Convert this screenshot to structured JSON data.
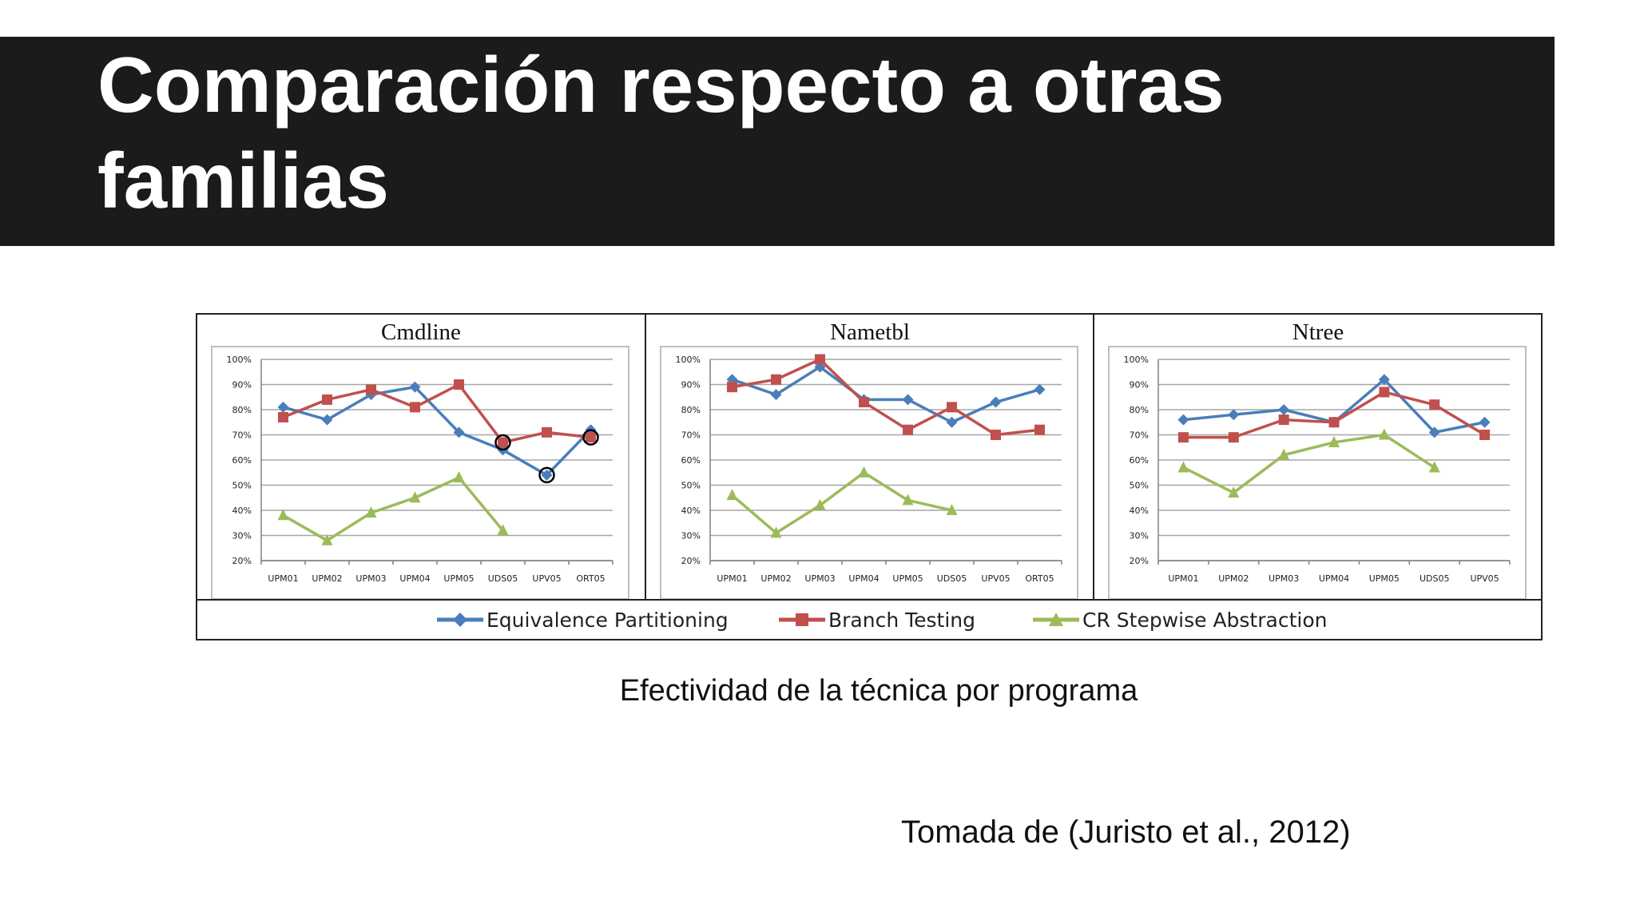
{
  "slide": {
    "title": "Comparación respecto a otras familias",
    "caption": "Efectividad de la técnica por programa",
    "source": "Tomada de (Juristo et al., 2012)"
  },
  "colors": {
    "equivalence": "#4a7ebb",
    "branch": "#c0504d",
    "stepwise": "#9bbb59"
  },
  "legend": [
    {
      "name": "Equivalence Partitioning",
      "color": "#4a7ebb",
      "marker": "diamond"
    },
    {
      "name": "Branch Testing",
      "color": "#c0504d",
      "marker": "square"
    },
    {
      "name": "CR Stepwise Abstraction",
      "color": "#9bbb59",
      "marker": "triangle"
    }
  ],
  "chart_data": [
    {
      "type": "line",
      "title": "Cmdline",
      "categories": [
        "UPM01",
        "UPM02",
        "UPM03",
        "UPM04",
        "UPM05",
        "UDS05",
        "UPV05",
        "ORT05"
      ],
      "ylim": [
        20,
        100
      ],
      "yticks": [
        "20%",
        "30%",
        "40%",
        "50%",
        "60%",
        "70%",
        "80%",
        "90%",
        "100%"
      ],
      "grid": true,
      "series": [
        {
          "name": "Equivalence Partitioning",
          "values": [
            81,
            76,
            86,
            89,
            71,
            64,
            54,
            72
          ]
        },
        {
          "name": "Branch Testing",
          "values": [
            77,
            84,
            88,
            81,
            90,
            67,
            71,
            69
          ]
        },
        {
          "name": "CR Stepwise Abstraction",
          "values": [
            38,
            28,
            39,
            45,
            53,
            32,
            null,
            null
          ]
        }
      ],
      "annotations": [
        {
          "category": "UDS05",
          "value": 67,
          "mark": "circle"
        },
        {
          "category": "UPV05",
          "value": 54,
          "mark": "circle"
        },
        {
          "category": "ORT05",
          "value": 69,
          "mark": "circle"
        }
      ]
    },
    {
      "type": "line",
      "title": "Nametbl",
      "categories": [
        "UPM01",
        "UPM02",
        "UPM03",
        "UPM04",
        "UPM05",
        "UDS05",
        "UPV05",
        "ORT05"
      ],
      "ylim": [
        20,
        100
      ],
      "yticks": [
        "20%",
        "30%",
        "40%",
        "50%",
        "60%",
        "70%",
        "80%",
        "90%",
        "100%"
      ],
      "grid": true,
      "series": [
        {
          "name": "Equivalence Partitioning",
          "values": [
            92,
            86,
            97,
            84,
            84,
            75,
            83,
            88
          ]
        },
        {
          "name": "Branch Testing",
          "values": [
            89,
            92,
            100,
            83,
            72,
            81,
            70,
            72
          ]
        },
        {
          "name": "CR Stepwise Abstraction",
          "values": [
            46,
            31,
            42,
            55,
            44,
            40,
            null,
            null
          ]
        }
      ],
      "annotations": []
    },
    {
      "type": "line",
      "title": "Ntree",
      "categories": [
        "UPM01",
        "UPM02",
        "UPM03",
        "UPM04",
        "UPM05",
        "UDS05",
        "UPV05"
      ],
      "ylim": [
        20,
        100
      ],
      "yticks": [
        "20%",
        "30%",
        "40%",
        "50%",
        "60%",
        "70%",
        "80%",
        "90%",
        "100%"
      ],
      "grid": true,
      "series": [
        {
          "name": "Equivalence Partitioning",
          "values": [
            76,
            78,
            80,
            75,
            92,
            71,
            75
          ]
        },
        {
          "name": "Branch Testing",
          "values": [
            69,
            69,
            76,
            75,
            87,
            82,
            70
          ]
        },
        {
          "name": "CR Stepwise Abstraction",
          "values": [
            57,
            47,
            62,
            67,
            70,
            57,
            null
          ]
        }
      ],
      "annotations": []
    }
  ]
}
